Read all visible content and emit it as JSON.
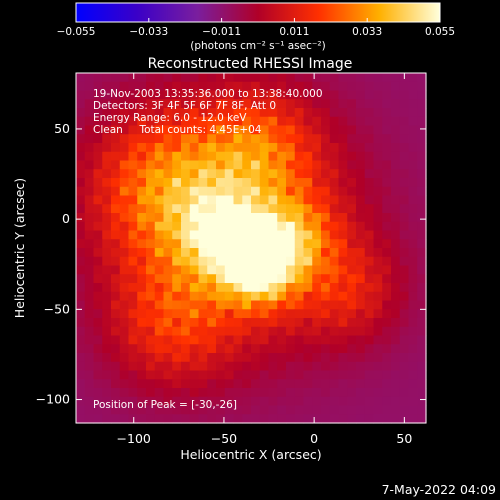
{
  "chart_data": {
    "type": "heatmap",
    "title": "Reconstructed RHESSI Image",
    "xlabel": "Heliocentric X (arcsec)",
    "ylabel": "Heliocentric Y (arcsec)",
    "xlim": [
      -132,
      62
    ],
    "ylim": [
      -113,
      81
    ],
    "xticks": [
      -100,
      -50,
      0,
      50
    ],
    "yticks": [
      -100,
      -50,
      0,
      50
    ],
    "xtick_labels": [
      "−100",
      "−50",
      "0",
      "50"
    ],
    "ytick_labels": [
      "−100",
      "−50",
      "0",
      "50"
    ],
    "colorbar": {
      "range": [
        -0.055,
        0.055
      ],
      "ticks": [
        -0.055,
        -0.033,
        -0.011,
        0.011,
        0.033,
        0.055
      ],
      "tick_labels": [
        "−0.055",
        "−0.033",
        "−0.011",
        "0.011",
        "0.033",
        "0.055"
      ],
      "units": "(photons cm⁻² s⁻¹ asec⁻²)",
      "colormap": "rhessi-red-temperature",
      "stops": [
        "#0000ff",
        "#3a00c8",
        "#7a1e9e",
        "#b00028",
        "#ff3000",
        "#ffb000",
        "#ffffdc"
      ]
    },
    "annotations": {
      "time": "19-Nov-2003 13:35:36.000 to 13:38:40.000",
      "detectors": "Detectors: 3F 4F 5F 6F 7F 8F, Att 0",
      "energy": "Energy Range: 6.0 - 12.0 keV",
      "method": "Clean     Total counts: 4.45E+04",
      "peak": "Position of Peak = [-30,-26]"
    },
    "peak_position": [
      -30,
      -26
    ],
    "peak_value": 0.055,
    "background_level": -0.01,
    "emission_sources": [
      {
        "x": -30,
        "y": -26,
        "sigma": 14,
        "amp": 0.047
      },
      {
        "x": -50,
        "y": -8,
        "sigma": 16,
        "amp": 0.03
      },
      {
        "x": -10,
        "y": -10,
        "sigma": 15,
        "amp": 0.022
      },
      {
        "x": -45,
        "y": -5,
        "sigma": 45,
        "amp": 0.035
      },
      {
        "x": -85,
        "y": 20,
        "sigma": 28,
        "amp": 0.024
      },
      {
        "x": -30,
        "y": 40,
        "sigma": 22,
        "amp": 0.02
      },
      {
        "x": 20,
        "y": -40,
        "sigma": 20,
        "amp": 0.016
      },
      {
        "x": -80,
        "y": -60,
        "sigma": 24,
        "amp": 0.018
      }
    ],
    "timestamp": "7-May-2022 04:09"
  }
}
